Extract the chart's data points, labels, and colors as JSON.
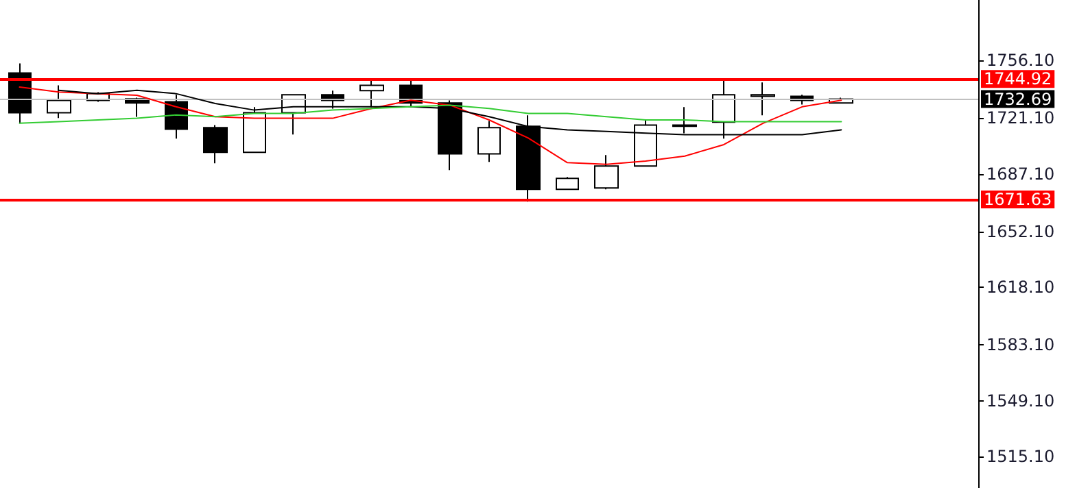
{
  "chart_data": {
    "type": "candlestick",
    "categories": [
      null,
      null,
      null,
      null,
      null,
      null,
      null,
      null,
      null,
      null,
      null,
      null,
      null,
      null,
      null,
      null,
      null,
      null,
      null,
      null,
      null,
      null
    ],
    "ohlc": [
      [
        1748.6,
        1754.4,
        1717.8,
        1724.4
      ],
      [
        1724.4,
        1741.1,
        1721.1,
        1731.9
      ],
      [
        1731.9,
        1736.9,
        1731.1,
        1736.1
      ],
      [
        1732.8,
        1733.6,
        1721.9,
        1730.3
      ],
      [
        1731.1,
        1735.3,
        1708.6,
        1714.4
      ],
      [
        1715.3,
        1716.9,
        1693.6,
        1700.3
      ],
      [
        1700.3,
        1727.8,
        1700.3,
        1724.4
      ],
      [
        1724.4,
        1735.3,
        1711.1,
        1735.3
      ],
      [
        1735.3,
        1737.8,
        1726.9,
        1731.9
      ],
      [
        1737.8,
        1745.3,
        1727.8,
        1741.1
      ],
      [
        1741.1,
        1744.4,
        1727.8,
        1730.3
      ],
      [
        1730.3,
        1731.9,
        1689.4,
        1699.4
      ],
      [
        1699.4,
        1719.4,
        1694.4,
        1715.3
      ],
      [
        1716.1,
        1722.8,
        1670.3,
        1677.8
      ],
      [
        1677.8,
        1685.3,
        1677.8,
        1684.4
      ],
      [
        1678.6,
        1698.6,
        1677.8,
        1691.9
      ],
      [
        1691.9,
        1720.3,
        1691.9,
        1716.9
      ],
      [
        1716.1,
        1727.8,
        1711.9,
        1716.9
      ],
      [
        1718.6,
        1744.4,
        1708.6,
        1735.3
      ],
      [
        1734.4,
        1742.8,
        1722.8,
        1735.3
      ],
      [
        1734.4,
        1735.3,
        1729.4,
        1731.9
      ],
      [
        1730.3,
        1733.6,
        1730.3,
        1732.7
      ]
    ],
    "series": [
      {
        "type": "line",
        "color": "#ff0000",
        "values": [
          1740,
          1737,
          1736,
          1735,
          1728,
          1722,
          1721,
          1721,
          1721,
          1727,
          1732,
          1729,
          1720,
          1709,
          1694,
          1693,
          1695,
          1698,
          1705,
          1718,
          1728,
          1732
        ]
      },
      {
        "type": "line",
        "color": "#000000",
        "values": [
          null,
          1738,
          1736,
          1738,
          1736,
          1730,
          1726,
          1728,
          1728,
          1728,
          1728,
          1727,
          1722,
          1716,
          1714,
          1713,
          1712,
          1711,
          1711,
          1711,
          1711,
          1714
        ]
      },
      {
        "type": "line",
        "color": "#33cc33",
        "values": [
          1718,
          1719,
          1720,
          1721,
          1723,
          1722,
          1724,
          1724,
          1726,
          1727,
          1728,
          1729,
          1727,
          1724,
          1724,
          1722,
          1720,
          1720,
          1719,
          1719,
          1719,
          1719
        ]
      }
    ],
    "ylim": [
      1496,
      1793
    ],
    "yticks": [
      {
        "value": 1515.1,
        "label": "1515.10"
      },
      {
        "value": 1549.1,
        "label": "1549.10"
      },
      {
        "value": 1583.1,
        "label": "1583.10"
      },
      {
        "value": 1618.1,
        "label": "1618.10"
      },
      {
        "value": 1652.1,
        "label": "1652.10"
      },
      {
        "value": 1687.1,
        "label": "1687.10"
      },
      {
        "value": 1721.1,
        "label": "1721.10"
      },
      {
        "value": 1756.1,
        "label": "1756.10"
      }
    ],
    "ref_lines": [
      {
        "axis": "y",
        "value": 1744.92,
        "label": "1744.92",
        "color": "#ff0000"
      },
      {
        "axis": "y",
        "value": 1732.69,
        "label": "1732.69",
        "color": "#c0c0c0"
      },
      {
        "axis": "y",
        "value": 1671.63,
        "label": "1671.63",
        "color": "#ff0000"
      }
    ],
    "grid": false,
    "marker": "none",
    "line_style": "solid"
  }
}
